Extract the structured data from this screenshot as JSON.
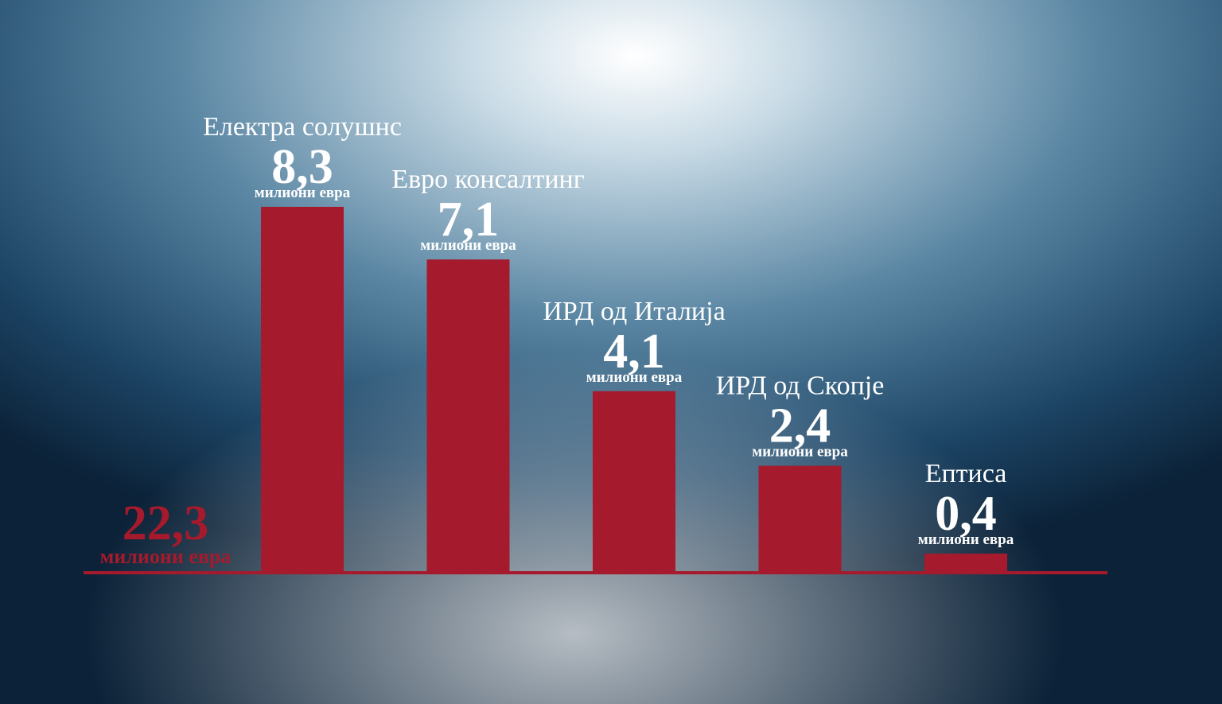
{
  "chart_data": {
    "type": "bar",
    "categories": [
      "Електра солушнс",
      "Евро консалтинг",
      "ИРД од Италија",
      "ИРД од Скопје",
      "Ептиса"
    ],
    "values": [
      8.3,
      7.1,
      4.1,
      2.4,
      0.4
    ],
    "value_labels": [
      "8,3",
      "7,1",
      "4,1",
      "2,4",
      "0,4"
    ],
    "unit": "милиони евра",
    "color": "#a51a2c",
    "total": {
      "value": 22.3,
      "label": "22,3"
    }
  }
}
